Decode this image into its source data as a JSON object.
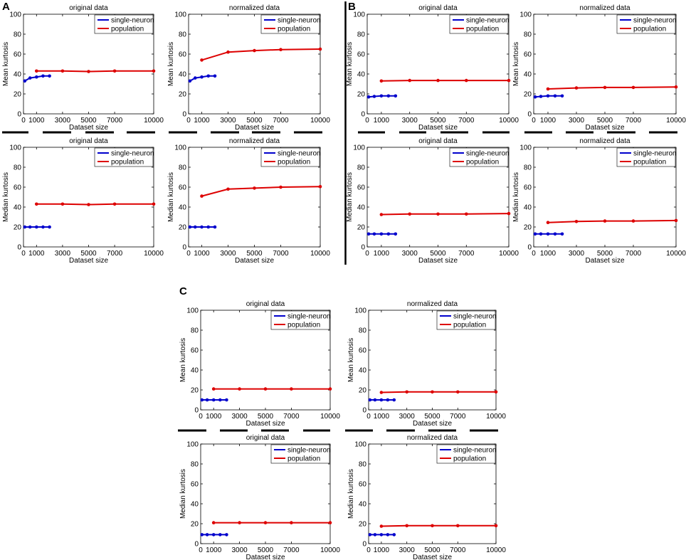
{
  "panels": [
    {
      "label": "A"
    },
    {
      "label": "B"
    },
    {
      "label": "C"
    }
  ],
  "chart_data": [
    {
      "type": "line",
      "panel": "A",
      "title": "original data",
      "xlabel": "Dataset size",
      "ylabel": "Mean kurtosis",
      "ylim": [
        0,
        100
      ],
      "xlim": [
        0,
        10000
      ],
      "xticks": [
        "0",
        "1000",
        "3000",
        "5000",
        "7000",
        "10000"
      ],
      "yticks": [
        "0",
        "20",
        "40",
        "60",
        "80",
        "100"
      ],
      "legend": [
        "single-neuron",
        "population"
      ],
      "series": [
        {
          "name": "single-neuron",
          "color": "#0000cc",
          "x": [
            100,
            500,
            1000,
            1500,
            2000
          ],
          "y": [
            33,
            36,
            37,
            38,
            38
          ]
        },
        {
          "name": "population",
          "color": "#dd0000",
          "x": [
            1000,
            3000,
            5000,
            7000,
            10000
          ],
          "y": [
            43,
            43,
            42.5,
            43,
            43
          ]
        }
      ]
    },
    {
      "type": "line",
      "panel": "A",
      "title": "normalized data",
      "xlabel": "Dataset size",
      "ylabel": "Mean kurtosis",
      "ylim": [
        0,
        100
      ],
      "xlim": [
        0,
        10000
      ],
      "xticks": [
        "0",
        "1000",
        "3000",
        "5000",
        "7000",
        "10000"
      ],
      "yticks": [
        "0",
        "20",
        "40",
        "60",
        "80",
        "100"
      ],
      "legend": [
        "single-neuron",
        "population"
      ],
      "series": [
        {
          "name": "single-neuron",
          "color": "#0000cc",
          "x": [
            100,
            500,
            1000,
            1500,
            2000
          ],
          "y": [
            33,
            36,
            37,
            38,
            38
          ]
        },
        {
          "name": "population",
          "color": "#dd0000",
          "x": [
            1000,
            3000,
            5000,
            7000,
            10000
          ],
          "y": [
            54,
            62,
            63.5,
            64.5,
            65
          ]
        }
      ]
    },
    {
      "type": "line",
      "panel": "A",
      "title": "original data",
      "xlabel": "Dataset size",
      "ylabel": "Median kurtosis",
      "ylim": [
        0,
        100
      ],
      "xlim": [
        0,
        10000
      ],
      "xticks": [
        "0",
        "1000",
        "3000",
        "5000",
        "7000",
        "10000"
      ],
      "yticks": [
        "0",
        "20",
        "40",
        "60",
        "80",
        "100"
      ],
      "legend": [
        "single-neuron",
        "population"
      ],
      "series": [
        {
          "name": "single-neuron",
          "color": "#0000cc",
          "x": [
            100,
            500,
            1000,
            1500,
            2000
          ],
          "y": [
            20,
            20,
            20,
            20,
            20
          ]
        },
        {
          "name": "population",
          "color": "#dd0000",
          "x": [
            1000,
            3000,
            5000,
            7000,
            10000
          ],
          "y": [
            43,
            43,
            42.5,
            43,
            43
          ]
        }
      ]
    },
    {
      "type": "line",
      "panel": "A",
      "title": "normalized data",
      "xlabel": "Dataset size",
      "ylabel": "Median kurtosis",
      "ylim": [
        0,
        100
      ],
      "xlim": [
        0,
        10000
      ],
      "xticks": [
        "0",
        "1000",
        "3000",
        "5000",
        "7000",
        "10000"
      ],
      "yticks": [
        "0",
        "20",
        "40",
        "60",
        "80",
        "100"
      ],
      "legend": [
        "single-neuron",
        "population"
      ],
      "series": [
        {
          "name": "single-neuron",
          "color": "#0000cc",
          "x": [
            100,
            500,
            1000,
            1500,
            2000
          ],
          "y": [
            20,
            20,
            20,
            20,
            20
          ]
        },
        {
          "name": "population",
          "color": "#dd0000",
          "x": [
            1000,
            3000,
            5000,
            7000,
            10000
          ],
          "y": [
            51,
            58,
            59,
            60,
            60.5
          ]
        }
      ]
    },
    {
      "type": "line",
      "panel": "B",
      "title": "original data",
      "xlabel": "Dataset size",
      "ylabel": "Mean kurtosis",
      "ylim": [
        0,
        100
      ],
      "xlim": [
        0,
        10000
      ],
      "xticks": [
        "0",
        "1000",
        "3000",
        "5000",
        "7000",
        "10000"
      ],
      "yticks": [
        "0",
        "20",
        "40",
        "60",
        "80",
        "100"
      ],
      "legend": [
        "single-neuron",
        "population"
      ],
      "series": [
        {
          "name": "single-neuron",
          "color": "#0000cc",
          "x": [
            100,
            500,
            1000,
            1500,
            2000
          ],
          "y": [
            17,
            17.5,
            18,
            18,
            18
          ]
        },
        {
          "name": "population",
          "color": "#dd0000",
          "x": [
            1000,
            3000,
            5000,
            7000,
            10000
          ],
          "y": [
            33,
            33.5,
            33.5,
            33.5,
            33.5
          ]
        }
      ]
    },
    {
      "type": "line",
      "panel": "B",
      "title": "normalized data",
      "xlabel": "Dataset size",
      "ylabel": "Mean kurtosis",
      "ylim": [
        0,
        100
      ],
      "xlim": [
        0,
        10000
      ],
      "xticks": [
        "0",
        "1000",
        "3000",
        "5000",
        "7000",
        "10000"
      ],
      "yticks": [
        "0",
        "20",
        "40",
        "60",
        "80",
        "100"
      ],
      "legend": [
        "single-neuron",
        "population"
      ],
      "series": [
        {
          "name": "single-neuron",
          "color": "#0000cc",
          "x": [
            100,
            500,
            1000,
            1500,
            2000
          ],
          "y": [
            17,
            17.5,
            18,
            18,
            18
          ]
        },
        {
          "name": "population",
          "color": "#dd0000",
          "x": [
            1000,
            3000,
            5000,
            7000,
            10000
          ],
          "y": [
            25,
            26,
            26.5,
            26.5,
            27
          ]
        }
      ]
    },
    {
      "type": "line",
      "panel": "B",
      "title": "original data",
      "xlabel": "Dataset size",
      "ylabel": "Median kurtosis",
      "ylim": [
        0,
        100
      ],
      "xlim": [
        0,
        10000
      ],
      "xticks": [
        "0",
        "1000",
        "3000",
        "5000",
        "7000",
        "10000"
      ],
      "yticks": [
        "0",
        "20",
        "40",
        "60",
        "80",
        "100"
      ],
      "legend": [
        "single-neuron",
        "population"
      ],
      "series": [
        {
          "name": "single-neuron",
          "color": "#0000cc",
          "x": [
            100,
            500,
            1000,
            1500,
            2000
          ],
          "y": [
            13,
            13,
            13,
            13,
            13
          ]
        },
        {
          "name": "population",
          "color": "#dd0000",
          "x": [
            1000,
            3000,
            5000,
            7000,
            10000
          ],
          "y": [
            32.5,
            33,
            33,
            33,
            33.5
          ]
        }
      ]
    },
    {
      "type": "line",
      "panel": "B",
      "title": "normalized data",
      "xlabel": "Dataset size",
      "ylabel": "Median kurtosis",
      "ylim": [
        0,
        100
      ],
      "xlim": [
        0,
        10000
      ],
      "xticks": [
        "0",
        "1000",
        "3000",
        "5000",
        "7000",
        "10000"
      ],
      "yticks": [
        "0",
        "20",
        "40",
        "60",
        "80",
        "100"
      ],
      "legend": [
        "single-neuron",
        "population"
      ],
      "series": [
        {
          "name": "single-neuron",
          "color": "#0000cc",
          "x": [
            100,
            500,
            1000,
            1500,
            2000
          ],
          "y": [
            13,
            13,
            13,
            13,
            13
          ]
        },
        {
          "name": "population",
          "color": "#dd0000",
          "x": [
            1000,
            3000,
            5000,
            7000,
            10000
          ],
          "y": [
            24.5,
            25.5,
            26,
            26,
            26.5
          ]
        }
      ]
    },
    {
      "type": "line",
      "panel": "C",
      "title": "original data",
      "xlabel": "Dataset size",
      "ylabel": "Mean kurtosis",
      "ylim": [
        0,
        100
      ],
      "xlim": [
        0,
        10000
      ],
      "xticks": [
        "0",
        "1000",
        "3000",
        "5000",
        "7000",
        "10000"
      ],
      "yticks": [
        "0",
        "20",
        "40",
        "60",
        "80",
        "100"
      ],
      "legend": [
        "single-neuron",
        "population"
      ],
      "series": [
        {
          "name": "single-neuron",
          "color": "#0000cc",
          "x": [
            100,
            500,
            1000,
            1500,
            2000
          ],
          "y": [
            10,
            10,
            10,
            10,
            10
          ]
        },
        {
          "name": "population",
          "color": "#dd0000",
          "x": [
            1000,
            3000,
            5000,
            7000,
            10000
          ],
          "y": [
            21,
            21,
            21,
            21,
            21
          ]
        }
      ]
    },
    {
      "type": "line",
      "panel": "C",
      "title": "normalized data",
      "xlabel": "Dataset size",
      "ylabel": "Mean kurtosis",
      "ylim": [
        0,
        100
      ],
      "xlim": [
        0,
        10000
      ],
      "xticks": [
        "0",
        "1000",
        "3000",
        "5000",
        "7000",
        "10000"
      ],
      "yticks": [
        "0",
        "20",
        "40",
        "60",
        "80",
        "100"
      ],
      "legend": [
        "single-neuron",
        "population"
      ],
      "series": [
        {
          "name": "single-neuron",
          "color": "#0000cc",
          "x": [
            100,
            500,
            1000,
            1500,
            2000
          ],
          "y": [
            10,
            10,
            10,
            10,
            10
          ]
        },
        {
          "name": "population",
          "color": "#dd0000",
          "x": [
            1000,
            3000,
            5000,
            7000,
            10000
          ],
          "y": [
            17.5,
            18,
            18,
            18,
            18
          ]
        }
      ]
    },
    {
      "type": "line",
      "panel": "C",
      "title": "original data",
      "xlabel": "Dataset size",
      "ylabel": "Median kurtosis",
      "ylim": [
        0,
        100
      ],
      "xlim": [
        0,
        10000
      ],
      "xticks": [
        "0",
        "1000",
        "3000",
        "5000",
        "7000",
        "10000"
      ],
      "yticks": [
        "0",
        "20",
        "40",
        "60",
        "80",
        "100"
      ],
      "legend": [
        "single-neuron",
        "population"
      ],
      "series": [
        {
          "name": "single-neuron",
          "color": "#0000cc",
          "x": [
            100,
            500,
            1000,
            1500,
            2000
          ],
          "y": [
            9,
            9,
            9,
            9,
            9
          ]
        },
        {
          "name": "population",
          "color": "#dd0000",
          "x": [
            1000,
            3000,
            5000,
            7000,
            10000
          ],
          "y": [
            21,
            21,
            21,
            21,
            21
          ]
        }
      ]
    },
    {
      "type": "line",
      "panel": "C",
      "title": "normalized data",
      "xlabel": "Dataset size",
      "ylabel": "Median kurtosis",
      "ylim": [
        0,
        100
      ],
      "xlim": [
        0,
        10000
      ],
      "xticks": [
        "0",
        "1000",
        "3000",
        "5000",
        "7000",
        "10000"
      ],
      "yticks": [
        "0",
        "20",
        "40",
        "60",
        "80",
        "100"
      ],
      "legend": [
        "single-neuron",
        "population"
      ],
      "series": [
        {
          "name": "single-neuron",
          "color": "#0000cc",
          "x": [
            100,
            500,
            1000,
            1500,
            2000
          ],
          "y": [
            9,
            9,
            9,
            9,
            9
          ]
        },
        {
          "name": "population",
          "color": "#dd0000",
          "x": [
            1000,
            3000,
            5000,
            7000,
            10000
          ],
          "y": [
            17.5,
            18,
            18,
            18,
            18
          ]
        }
      ]
    }
  ]
}
